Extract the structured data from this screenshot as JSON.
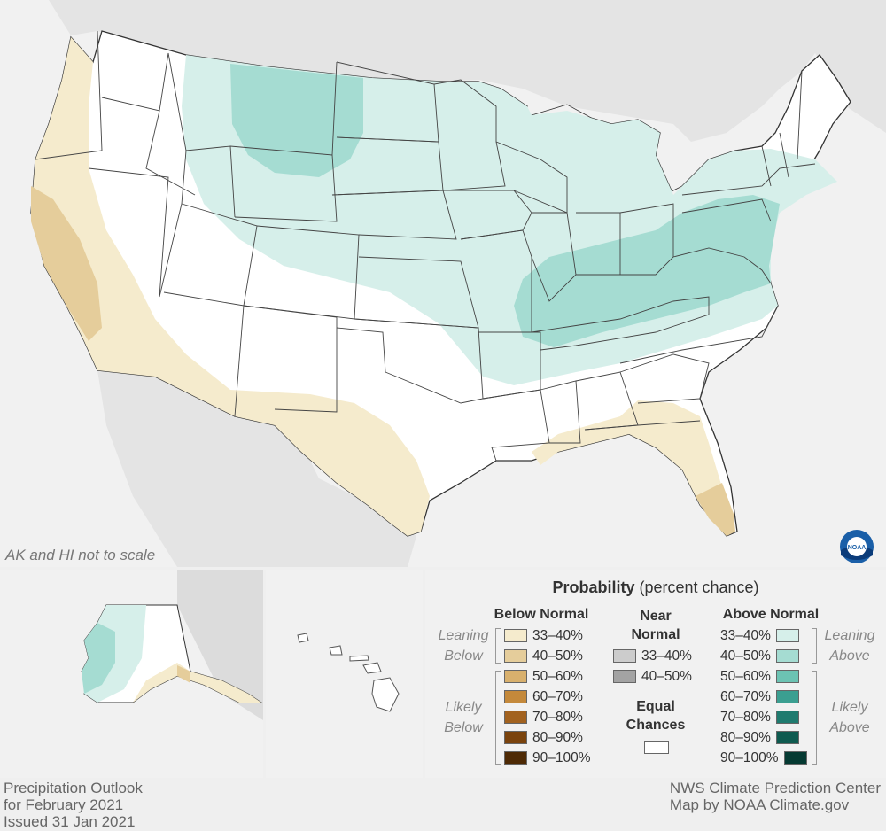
{
  "map": {
    "scale_note": "AK and HI not to scale",
    "colors": {
      "background": "#e3e3e3",
      "equal_chances": "#ffffff",
      "below_33_40": "#f5ebcd",
      "below_40_50": "#e5cd9b",
      "above_33_40": "#d6efea",
      "above_40_50": "#a5dcd2"
    }
  },
  "legend": {
    "title": "Probability",
    "title_suffix": " (percent chance)",
    "below_header": "Below Normal",
    "near_header_line1": "Near",
    "near_header_line2": "Normal",
    "above_header": "Above Normal",
    "leaning_below_line1": "Leaning",
    "leaning_below_line2": "Below",
    "likely_below_line1": "Likely",
    "likely_below_line2": "Below",
    "leaning_above_line1": "Leaning",
    "leaning_above_line2": "Above",
    "likely_above_line1": "Likely",
    "likely_above_line2": "Above",
    "equal_line1": "Equal",
    "equal_line2": "Chances",
    "below": [
      {
        "label": "33–40%",
        "color": "#f5ebcd"
      },
      {
        "label": "40–50%",
        "color": "#e5cd9b"
      },
      {
        "label": "50–60%",
        "color": "#d8b06d"
      },
      {
        "label": "60–70%",
        "color": "#c4893b"
      },
      {
        "label": "70–80%",
        "color": "#a2621f"
      },
      {
        "label": "80–90%",
        "color": "#7a430d"
      },
      {
        "label": "90–100%",
        "color": "#4e2a05"
      }
    ],
    "near": [
      {
        "label": "33–40%",
        "color": "#cccccc"
      },
      {
        "label": "40–50%",
        "color": "#a3a3a3"
      }
    ],
    "above": [
      {
        "label": "33–40%",
        "color": "#d6efea"
      },
      {
        "label": "40–50%",
        "color": "#a5dcd2"
      },
      {
        "label": "50–60%",
        "color": "#6cc3b3"
      },
      {
        "label": "60–70%",
        "color": "#3b9f91"
      },
      {
        "label": "70–80%",
        "color": "#1f7b6f"
      },
      {
        "label": "80–90%",
        "color": "#0e5a4f"
      },
      {
        "label": "90–100%",
        "color": "#053a32"
      }
    ]
  },
  "footer": {
    "line1": "Precipitation Outlook",
    "line2": "for February 2021",
    "line3": "Issued 31 Jan 2021",
    "credit1": "NWS Climate Prediction Center",
    "credit2": "Map by NOAA Climate.gov"
  },
  "logo": {
    "text": "NOAA"
  }
}
